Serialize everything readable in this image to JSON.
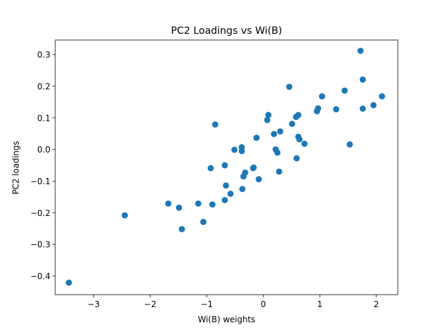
{
  "chart_data": {
    "type": "scatter",
    "title": "PC2 Loadings vs Wi(B)",
    "xlabel": "Wi(B) weights",
    "ylabel": "PC2 loadings",
    "xlim": [
      -3.68,
      2.38
    ],
    "ylim": [
      -0.459,
      0.346
    ],
    "xticks": [
      -3,
      -2,
      -1,
      0,
      1,
      2
    ],
    "xtick_labels": [
      "−3",
      "−2",
      "−1",
      "0",
      "1",
      "2"
    ],
    "yticks": [
      -0.4,
      -0.3,
      -0.2,
      -0.1,
      0.0,
      0.1,
      0.2,
      0.3
    ],
    "ytick_labels": [
      "−0.4",
      "−0.3",
      "−0.2",
      "−0.1",
      "0.0",
      "0.1",
      "0.2",
      "0.3"
    ],
    "grid": false,
    "marker_color": "#1f77b4",
    "points": [
      {
        "x": -3.44,
        "y": -0.421
      },
      {
        "x": -2.45,
        "y": -0.208
      },
      {
        "x": -1.68,
        "y": -0.171
      },
      {
        "x": -1.49,
        "y": -0.184
      },
      {
        "x": -1.44,
        "y": -0.252
      },
      {
        "x": -1.15,
        "y": -0.171
      },
      {
        "x": -1.06,
        "y": -0.229
      },
      {
        "x": -0.9,
        "y": -0.174
      },
      {
        "x": -0.93,
        "y": -0.059
      },
      {
        "x": -0.85,
        "y": 0.079
      },
      {
        "x": -0.68,
        "y": -0.16
      },
      {
        "x": -0.66,
        "y": -0.114
      },
      {
        "x": -0.68,
        "y": -0.05
      },
      {
        "x": -0.58,
        "y": -0.14
      },
      {
        "x": -0.51,
        "y": -0.001
      },
      {
        "x": -0.38,
        "y": 0.007
      },
      {
        "x": -0.38,
        "y": -0.005
      },
      {
        "x": -0.37,
        "y": -0.125
      },
      {
        "x": -0.35,
        "y": -0.085
      },
      {
        "x": -0.32,
        "y": -0.073
      },
      {
        "x": -0.18,
        "y": -0.059
      },
      {
        "x": -0.17,
        "y": -0.057
      },
      {
        "x": -0.12,
        "y": 0.037
      },
      {
        "x": -0.08,
        "y": -0.094
      },
      {
        "x": 0.07,
        "y": 0.093
      },
      {
        "x": 0.09,
        "y": 0.109
      },
      {
        "x": 0.19,
        "y": 0.049
      },
      {
        "x": 0.22,
        "y": 0.0
      },
      {
        "x": 0.25,
        "y": -0.01
      },
      {
        "x": 0.28,
        "y": -0.07
      },
      {
        "x": 0.3,
        "y": 0.057
      },
      {
        "x": 0.46,
        "y": 0.198
      },
      {
        "x": 0.51,
        "y": 0.081
      },
      {
        "x": 0.58,
        "y": 0.103
      },
      {
        "x": 0.59,
        "y": -0.028
      },
      {
        "x": 0.62,
        "y": 0.04
      },
      {
        "x": 0.62,
        "y": 0.109
      },
      {
        "x": 0.64,
        "y": 0.032
      },
      {
        "x": 0.73,
        "y": 0.018
      },
      {
        "x": 0.95,
        "y": 0.121
      },
      {
        "x": 0.97,
        "y": 0.13
      },
      {
        "x": 1.04,
        "y": 0.168
      },
      {
        "x": 1.29,
        "y": 0.127
      },
      {
        "x": 1.44,
        "y": 0.186
      },
      {
        "x": 1.53,
        "y": 0.016
      },
      {
        "x": 1.72,
        "y": 0.312
      },
      {
        "x": 1.76,
        "y": 0.221
      },
      {
        "x": 1.76,
        "y": 0.129
      },
      {
        "x": 1.95,
        "y": 0.14
      },
      {
        "x": 2.1,
        "y": 0.168
      }
    ]
  }
}
